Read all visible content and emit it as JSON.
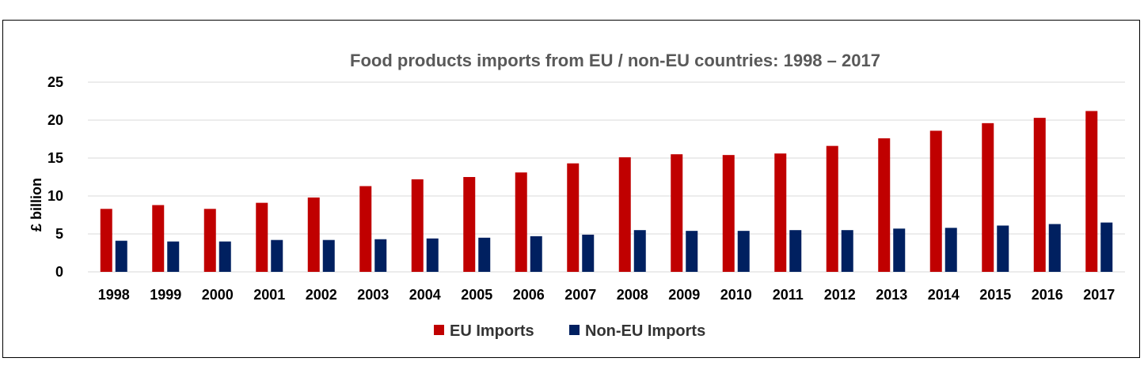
{
  "chart_data": {
    "type": "bar",
    "title": "Food products imports from EU / non-EU countries: 1998 – 2017",
    "xlabel": "",
    "ylabel": "£ billion",
    "ylim": [
      0,
      25
    ],
    "yticks": [
      0,
      5,
      10,
      15,
      20,
      25
    ],
    "grid": true,
    "legend_position": "bottom",
    "categories": [
      "1998",
      "1999",
      "2000",
      "2001",
      "2002",
      "2003",
      "2004",
      "2005",
      "2006",
      "2007",
      "2008",
      "2009",
      "2010",
      "2011",
      "2012",
      "2013",
      "2014",
      "2015",
      "2016",
      "2017"
    ],
    "series": [
      {
        "name": "EU Imports",
        "color": "#c00000",
        "values": [
          8.3,
          8.8,
          8.3,
          9.1,
          9.8,
          11.3,
          12.2,
          12.5,
          13.1,
          14.3,
          15.1,
          15.5,
          15.4,
          15.6,
          16.6,
          17.6,
          18.6,
          19.6,
          20.3,
          21.2
        ]
      },
      {
        "name": "Non-EU Imports",
        "color": "#002060",
        "values": [
          4.1,
          4.0,
          4.0,
          4.2,
          4.2,
          4.3,
          4.4,
          4.5,
          4.7,
          4.9,
          5.5,
          5.4,
          5.4,
          5.5,
          5.5,
          5.7,
          5.8,
          6.1,
          6.3,
          6.5
        ]
      }
    ]
  }
}
